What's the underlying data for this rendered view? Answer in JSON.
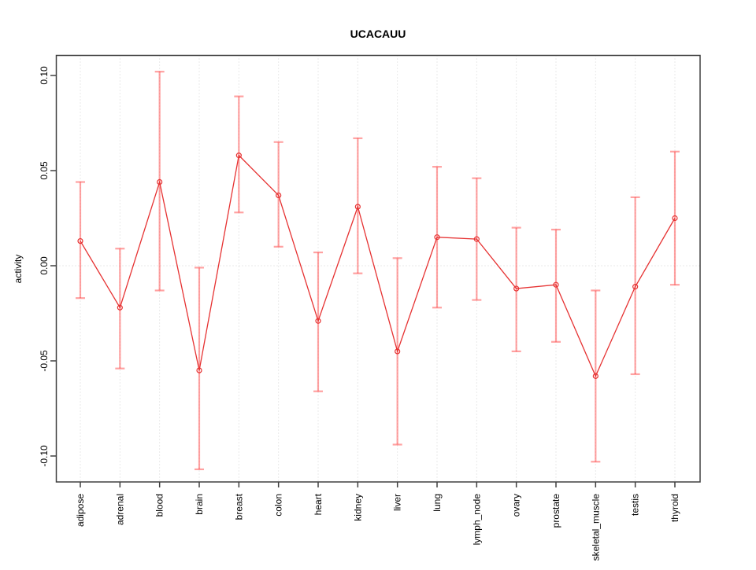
{
  "chart_data": {
    "type": "line",
    "title": "UCACAUU",
    "xlabel": "",
    "ylabel": "activity",
    "legend": "none",
    "grid": "vertical dotted gridline per category; dotted horizontal line at y=0 only",
    "ylim": [
      -0.113,
      0.11
    ],
    "ytick_values": [
      0.1,
      0.05,
      0.0,
      -0.05,
      -0.1
    ],
    "ytick_labels": [
      "0.10",
      "0.05",
      "0.00",
      "-0.05",
      "-0.10"
    ],
    "categories": [
      "adipose",
      "adrenal",
      "blood",
      "brain",
      "breast",
      "colon",
      "heart",
      "kidney",
      "liver",
      "lung",
      "lymph_node",
      "ovary",
      "prostate",
      "skeletal_muscle",
      "testis",
      "thyroid"
    ],
    "series": [
      {
        "name": "activity",
        "marker": "open-circle",
        "values": [
          0.013,
          -0.022,
          0.044,
          -0.055,
          0.058,
          0.037,
          -0.029,
          0.031,
          -0.045,
          0.015,
          0.014,
          -0.012,
          -0.01,
          -0.058,
          -0.011,
          0.025
        ],
        "error_upper": [
          0.044,
          0.009,
          0.102,
          -0.001,
          0.089,
          0.065,
          0.007,
          0.067,
          0.004,
          0.052,
          0.046,
          0.02,
          0.019,
          -0.013,
          0.036,
          0.06
        ],
        "error_lower": [
          -0.017,
          -0.054,
          -0.013,
          -0.107,
          0.028,
          0.01,
          -0.066,
          -0.004,
          -0.094,
          -0.022,
          -0.018,
          -0.045,
          -0.04,
          -0.103,
          -0.057,
          -0.01
        ]
      }
    ],
    "colors": {
      "line": "#e63232",
      "marker": "#e63232",
      "error_bar": "#ff4646",
      "error_bar_opacity": 0.5,
      "gridline": "#d4d4d4",
      "axis": "#404040",
      "text": "#000000",
      "background": "#ffffff"
    }
  }
}
